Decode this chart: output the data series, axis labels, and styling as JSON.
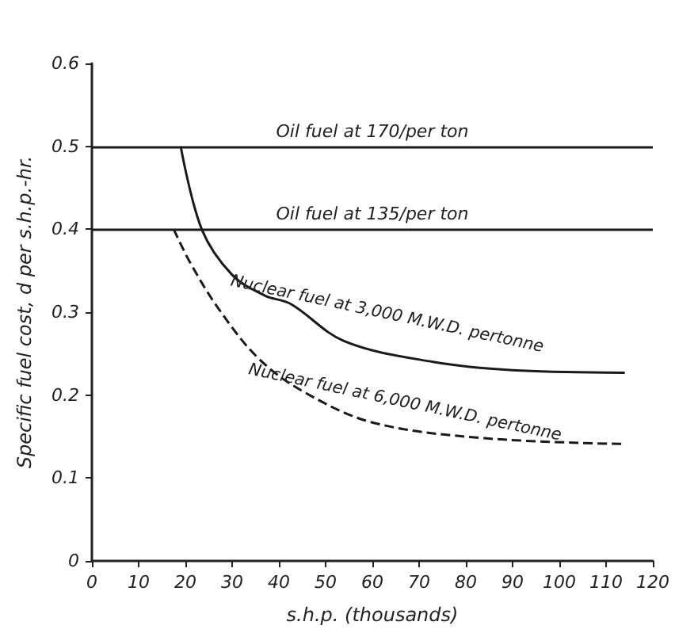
{
  "chart_data": {
    "type": "line",
    "xlabel": "s.h.p. (thousands)",
    "ylabel": "Specific fuel cost, d per s.h.p.-hr.",
    "xlim": [
      0,
      120
    ],
    "xticks": [
      0,
      10,
      20,
      30,
      40,
      50,
      60,
      70,
      80,
      90,
      100,
      110,
      120
    ],
    "ylim": [
      0,
      0.6
    ],
    "yticks": [
      0,
      0.1,
      0.2,
      0.3,
      0.4,
      0.5,
      0.6
    ],
    "grid": false,
    "legend": false,
    "marker": "none",
    "series": [
      {
        "name": "Nuclear fuel at 3,000 M.W.D. pertonne",
        "color": "#1a1a1a",
        "line_style": "solid",
        "x": [
          19,
          23.5,
          30,
          37,
          42.5,
          54,
          73,
          90,
          114
        ],
        "values": [
          0.5,
          0.4,
          0.345,
          0.32,
          0.31,
          0.265,
          0.24,
          0.23,
          0.227
        ]
      },
      {
        "name": "Nuclear fuel at 6,000 M.W.D. pertonne",
        "color": "#1a1a1a",
        "line_style": "dashed",
        "x": [
          17.5,
          21,
          27,
          35.5,
          45,
          60,
          84,
          114
        ],
        "values": [
          0.4,
          0.36,
          0.305,
          0.245,
          0.205,
          0.167,
          0.148,
          0.141
        ]
      }
    ],
    "ref_lines": [
      {
        "axis": "y",
        "value": 0.5,
        "label": "Oil fuel at 170/per ton",
        "color": "#1a1a1a"
      },
      {
        "axis": "y",
        "value": 0.4,
        "label": "Oil fuel at 135/per ton",
        "color": "#1a1a1a"
      }
    ]
  }
}
